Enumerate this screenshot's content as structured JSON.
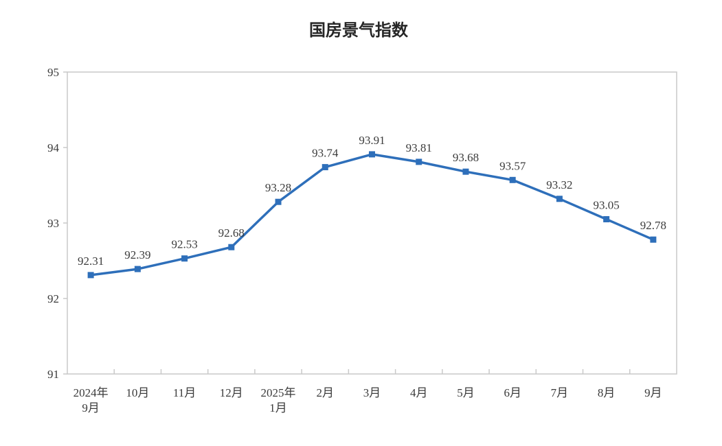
{
  "chart_data": {
    "type": "line",
    "title": "国房景气指数",
    "categories": [
      "2024年\n9月",
      "10月",
      "11月",
      "12月",
      "2025年\n1月",
      "2月",
      "3月",
      "4月",
      "5月",
      "6月",
      "7月",
      "8月",
      "9月"
    ],
    "series": [
      {
        "name": "国房景气指数",
        "values": [
          92.31,
          92.39,
          92.53,
          92.68,
          93.28,
          93.74,
          93.91,
          93.81,
          93.68,
          93.57,
          93.32,
          93.05,
          92.78
        ]
      }
    ],
    "ylim": [
      91,
      95
    ],
    "yticks": [
      91,
      92,
      93,
      94,
      95
    ],
    "grid": false,
    "legend": "none",
    "data_labels": true,
    "marker": "square",
    "colors": {
      "line": "#2E6FBA",
      "text": "#3B3B3B",
      "title_text": "#262626",
      "axis": "#C9C9C9"
    }
  }
}
